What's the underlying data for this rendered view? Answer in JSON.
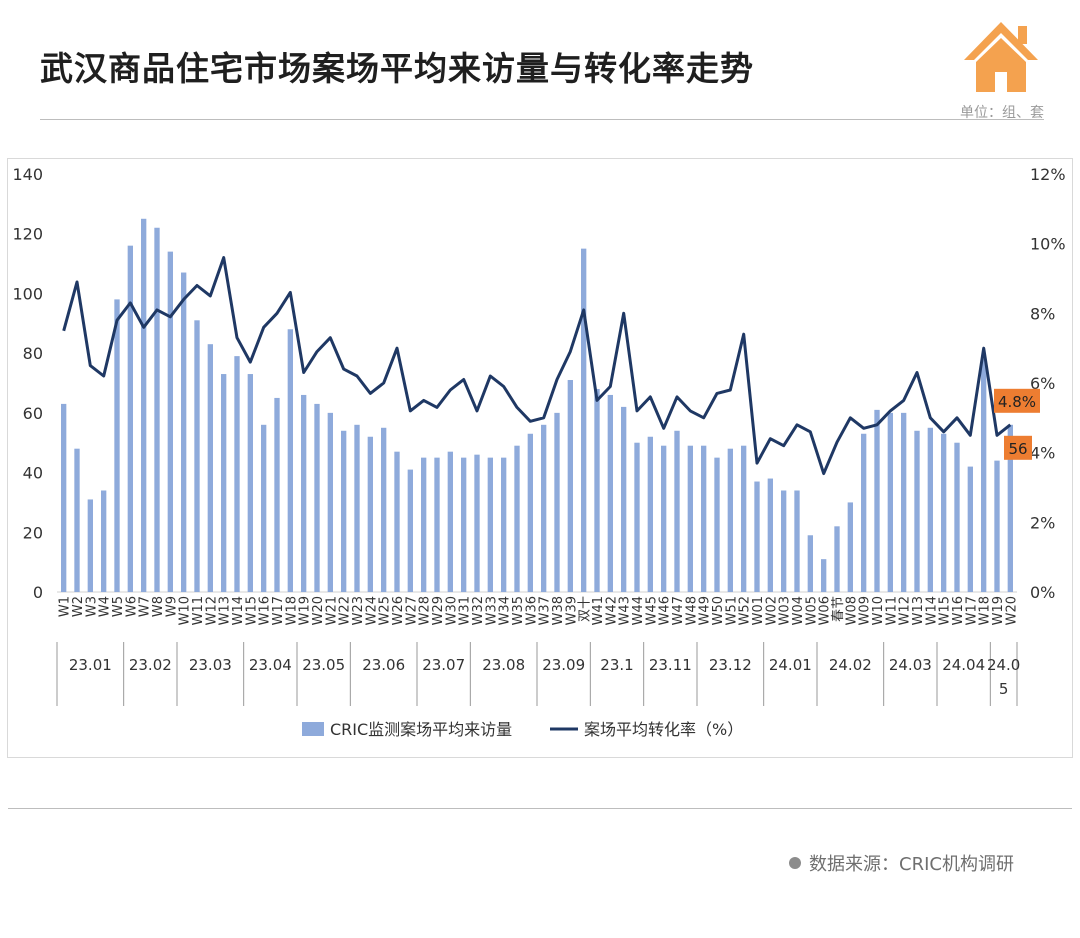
{
  "header": {
    "title": "武汉商品住宅市场案场平均来访量与转化率走势",
    "unit": "单位：组、套",
    "logo": "house-icon"
  },
  "footer": {
    "source": "数据来源：CRIC机构调研"
  },
  "colors": {
    "bar": "#8eaadb",
    "line": "#1f3864",
    "callout": "#ed7d31",
    "axis_text": "#333333"
  },
  "chart_data": {
    "type": "bar",
    "title": "",
    "xlabel": "",
    "ylabel": "",
    "ylim": [
      0,
      140
    ],
    "y_ticks": [
      0,
      20,
      40,
      60,
      80,
      100,
      120,
      140
    ],
    "y2lim": [
      0,
      12
    ],
    "y2_ticks": [
      "0%",
      "2%",
      "4%",
      "6%",
      "8%",
      "10%",
      "12%"
    ],
    "grid": false,
    "legend_position": "bottom",
    "categories": [
      "W1",
      "W2",
      "W3",
      "W4",
      "W5",
      "W6",
      "W7",
      "W8",
      "W9",
      "W10",
      "W11",
      "W12",
      "W13",
      "W14",
      "W15",
      "W16",
      "W17",
      "W18",
      "W19",
      "W20",
      "W21",
      "W22",
      "W23",
      "W24",
      "W25",
      "W26",
      "W27",
      "W28",
      "W29",
      "W30",
      "W31",
      "W32",
      "W33",
      "W34",
      "W35",
      "W36",
      "W37",
      "W38",
      "W39",
      "双十",
      "W41",
      "W42",
      "W43",
      "W44",
      "W45",
      "W46",
      "W47",
      "W48",
      "W49",
      "W50",
      "W51",
      "W52",
      "W01",
      "W02",
      "W03",
      "W04",
      "W05",
      "W06",
      "春节",
      "W08",
      "W09",
      "W10",
      "W11",
      "W12",
      "W13",
      "W14",
      "W15",
      "W16",
      "W17",
      "W18",
      "W19",
      "W20"
    ],
    "months": [
      {
        "label": "23.01",
        "count": 5
      },
      {
        "label": "23.02",
        "count": 4
      },
      {
        "label": "23.03",
        "count": 5
      },
      {
        "label": "23.04",
        "count": 4
      },
      {
        "label": "23.05",
        "count": 4
      },
      {
        "label": "23.06",
        "count": 5
      },
      {
        "label": "23.07",
        "count": 4
      },
      {
        "label": "23.08",
        "count": 5
      },
      {
        "label": "23.09",
        "count": 4
      },
      {
        "label": "23.1",
        "count": 4
      },
      {
        "label": "23.11",
        "count": 4
      },
      {
        "label": "23.12",
        "count": 5
      },
      {
        "label": "24.01",
        "count": 4
      },
      {
        "label": "24.02",
        "count": 5
      },
      {
        "label": "24.03",
        "count": 4
      },
      {
        "label": "24.04",
        "count": 4
      },
      {
        "label": "24.0\n5",
        "count": 2
      }
    ],
    "series": [
      {
        "name": "CRIC监测案场平均来访量",
        "type": "bar",
        "axis": "left",
        "values": [
          63,
          48,
          31,
          34,
          98,
          116,
          125,
          122,
          114,
          107,
          91,
          83,
          73,
          79,
          73,
          56,
          65,
          88,
          66,
          63,
          60,
          54,
          56,
          52,
          55,
          47,
          41,
          45,
          45,
          47,
          45,
          46,
          45,
          45,
          49,
          53,
          56,
          60,
          71,
          115,
          68,
          66,
          62,
          50,
          52,
          49,
          54,
          49,
          49,
          45,
          48,
          49,
          37,
          38,
          34,
          34,
          19,
          11,
          22,
          30,
          53,
          61,
          60,
          60,
          54,
          55,
          53,
          50,
          42,
          78,
          44,
          56
        ]
      },
      {
        "name": "案场平均转化率（%）",
        "type": "line",
        "axis": "right",
        "values": [
          7.5,
          8.9,
          6.5,
          6.2,
          7.8,
          8.3,
          7.6,
          8.1,
          7.9,
          8.4,
          8.8,
          8.5,
          9.6,
          7.3,
          6.6,
          7.6,
          8.0,
          8.6,
          6.3,
          6.9,
          7.3,
          6.4,
          6.2,
          5.7,
          6.0,
          7.0,
          5.2,
          5.5,
          5.3,
          5.8,
          6.1,
          5.2,
          6.2,
          5.9,
          5.3,
          4.9,
          5.0,
          6.1,
          6.9,
          8.1,
          5.5,
          5.9,
          8.0,
          5.2,
          5.6,
          4.7,
          5.6,
          5.2,
          5.0,
          5.7,
          5.8,
          7.4,
          3.7,
          4.4,
          4.2,
          4.8,
          4.6,
          3.4,
          4.3,
          5.0,
          4.7,
          4.8,
          5.2,
          5.5,
          6.3,
          5.0,
          4.6,
          5.0,
          4.5,
          7.0,
          4.5,
          4.8
        ]
      }
    ],
    "callouts": [
      {
        "text": "4.8%",
        "series": 1,
        "index": 71
      },
      {
        "text": "56",
        "series": 0,
        "index": 71
      }
    ],
    "legend": [
      "CRIC监测案场平均来访量",
      "案场平均转化率（%）"
    ]
  }
}
